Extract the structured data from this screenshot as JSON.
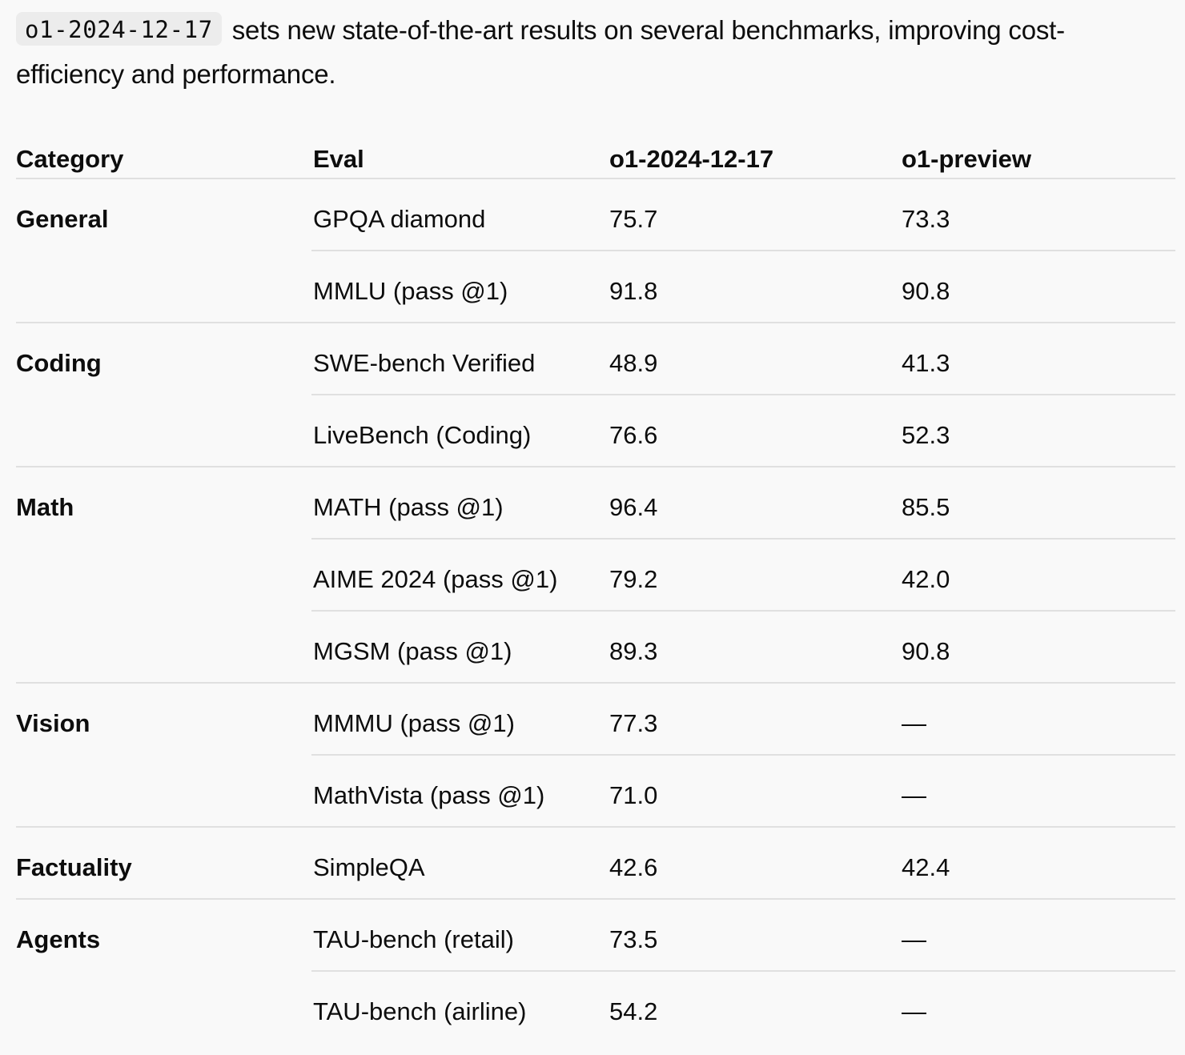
{
  "intro": {
    "code": "o1-2024-12-17",
    "text": "sets new state-of-the-art results on several benchmarks, improving cost-efficiency and performance."
  },
  "table": {
    "headers": [
      "Category",
      "Eval",
      "o1-2024-12-17",
      "o1-preview"
    ],
    "rows": [
      {
        "category": "General",
        "eval": "GPQA diamond",
        "o1": "75.7",
        "preview": "73.3"
      },
      {
        "category": "",
        "eval": "MMLU (pass @1)",
        "o1": "91.8",
        "preview": "90.8"
      },
      {
        "category": "Coding",
        "eval": "SWE-bench Verified",
        "o1": "48.9",
        "preview": "41.3"
      },
      {
        "category": "",
        "eval": "LiveBench (Coding)",
        "o1": "76.6",
        "preview": "52.3"
      },
      {
        "category": "Math",
        "eval": "MATH (pass @1)",
        "o1": "96.4",
        "preview": "85.5"
      },
      {
        "category": "",
        "eval": "AIME 2024 (pass @1)",
        "o1": "79.2",
        "preview": "42.0"
      },
      {
        "category": "",
        "eval": "MGSM (pass @1)",
        "o1": "89.3",
        "preview": "90.8"
      },
      {
        "category": "Vision",
        "eval": "MMMU (pass @1)",
        "o1": "77.3",
        "preview": "—"
      },
      {
        "category": "",
        "eval": "MathVista (pass @1)",
        "o1": "71.0",
        "preview": "—"
      },
      {
        "category": "Factuality",
        "eval": "SimpleQA",
        "o1": "42.6",
        "preview": "42.4"
      },
      {
        "category": "Agents",
        "eval": "TAU-bench (retail)",
        "o1": "73.5",
        "preview": "—"
      },
      {
        "category": "",
        "eval": "TAU-bench (airline)",
        "o1": "54.2",
        "preview": "—"
      }
    ]
  }
}
